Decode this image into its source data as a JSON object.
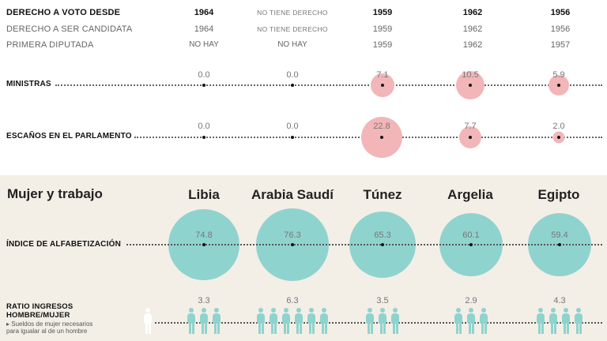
{
  "rows": {
    "vote": {
      "label": "DERECHO A VOTO DESDE",
      "values": [
        "1964",
        "NO TIENE DERECHO",
        "1959",
        "1962",
        "1956"
      ]
    },
    "candidate": {
      "label": "DERECHO A SER CANDIDATA",
      "values": [
        "1964",
        "NO TIENE DERECHO",
        "1959",
        "1962",
        "1956"
      ]
    },
    "first_deputy": {
      "label": "PRIMERA DIPUTADA",
      "values": [
        "NO HAY",
        "NO HAY",
        "1959",
        "1962",
        "1957"
      ]
    }
  },
  "ministras": {
    "label": "MINISTRAS",
    "values": [
      "0.0",
      "0.0",
      "7.1",
      "10.5",
      "5.9"
    ],
    "color": "#f2b6b8"
  },
  "escanos": {
    "label": "ESCAÑOS EN EL PARLAMENTO",
    "values": [
      "0.0",
      "0.0",
      "22.8",
      "7.7",
      "2.0"
    ],
    "color": "#f2b6b8"
  },
  "panel": {
    "title": "Mujer y trabajo",
    "countries": [
      "Libia",
      "Arabia Saudí",
      "Túnez",
      "Argelia",
      "Egipto"
    ]
  },
  "alfabetizacion": {
    "label": "ÍNDICE DE ALFABETIZACIÓN",
    "values": [
      "74.8",
      "76.3",
      "65.3",
      "60.1",
      "59.4"
    ],
    "color": "#8fd3cf"
  },
  "ratio": {
    "label_line1": "RATIO INGRESOS",
    "label_line2": "HOMBRE/MUJER",
    "note_line1": "▸ Sueldos de mujer necesarios",
    "note_line2": "para igualar al de un hombre",
    "values": [
      "3.3",
      "6.3",
      "3.5",
      "2.9",
      "4.3"
    ],
    "icon_counts": [
      3,
      6,
      3,
      3,
      4
    ],
    "female_color": "#8fd3cf",
    "male_color": "#ffffff"
  }
}
